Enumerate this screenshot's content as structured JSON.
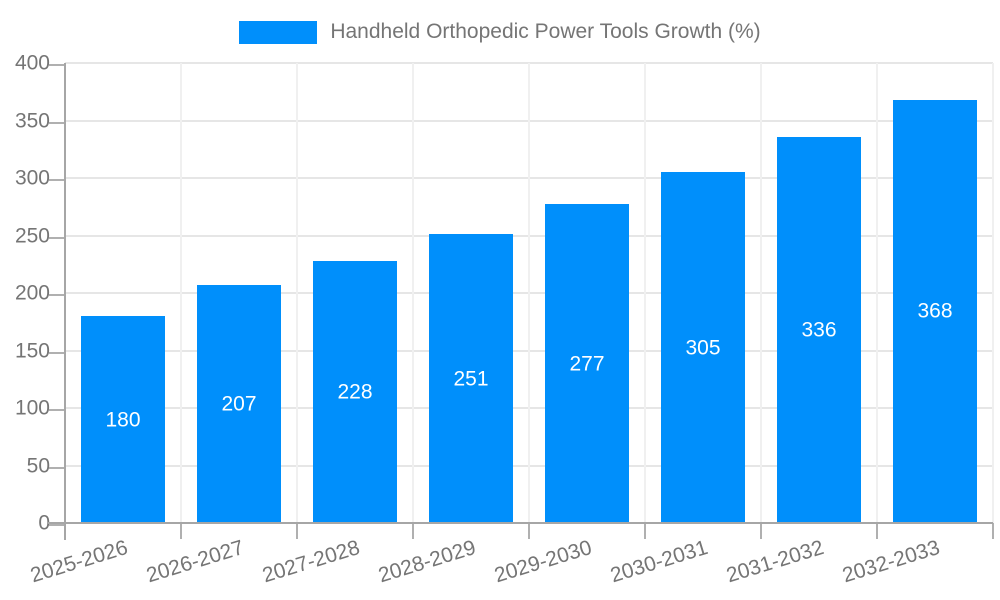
{
  "chart_data": {
    "type": "bar",
    "title": "Handheld Orthopedic Power Tools Growth (%)",
    "categories": [
      "2025-2026",
      "2026-2027",
      "2027-2028",
      "2028-2029",
      "2029-2030",
      "2030-2031",
      "2031-2032",
      "2032-2033"
    ],
    "series": [
      {
        "name": "Handheld Orthopedic Power Tools Growth (%)",
        "values": [
          180,
          207,
          228,
          251,
          277,
          305,
          336,
          368
        ]
      }
    ],
    "values": [
      180,
      207,
      228,
      251,
      277,
      305,
      336,
      368
    ],
    "value_labels_shown": true,
    "xlabel": "",
    "ylabel": "",
    "ylim": [
      0,
      400
    ],
    "yticks": [
      0,
      50,
      100,
      150,
      200,
      250,
      300,
      350,
      400
    ],
    "grid": true,
    "legend_position": "top",
    "x_label_rotation_deg": -17,
    "colors": {
      "bar": "#008FFB",
      "value_label": "#ffffff",
      "axis_text": "#757575",
      "axis_line": "#a6a6a6",
      "gridline_h": "#e6e6e6",
      "gridline_v": "#f0f0f0"
    }
  },
  "legend": {
    "label": "Handheld Orthopedic Power Tools Growth (%)"
  }
}
